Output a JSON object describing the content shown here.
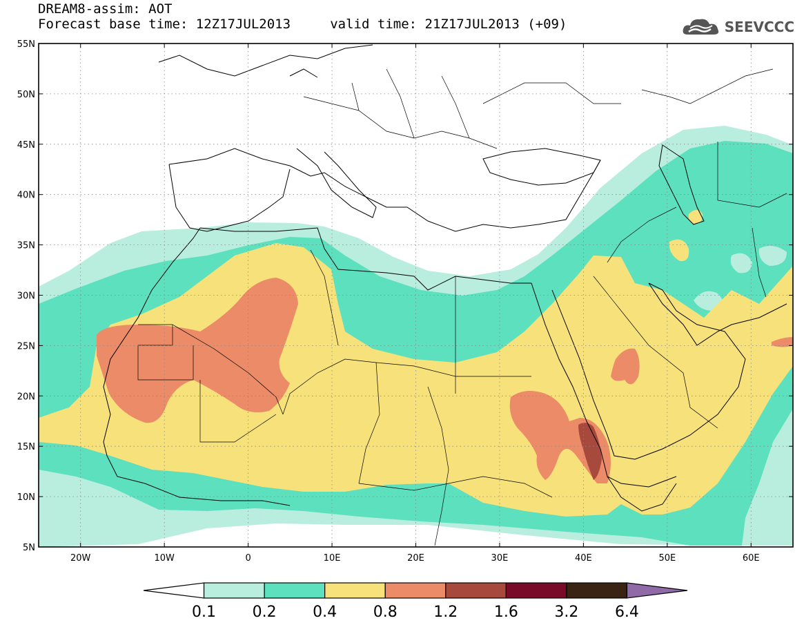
{
  "title": {
    "line1": "DREAM8-assim: AOT",
    "line2": "Forecast base time: 12Z17JUL2013     valid time: 21Z17JUL2013 (+09)"
  },
  "logo": {
    "text": "SEEVCCC",
    "icon": "cloud-logo-icon"
  },
  "map": {
    "lon_range": [
      -25,
      65
    ],
    "lat_range": [
      5,
      55
    ],
    "x_ticks": [
      {
        "value": -20,
        "label": "20W"
      },
      {
        "value": -10,
        "label": "10W"
      },
      {
        "value": 0,
        "label": "0"
      },
      {
        "value": 10,
        "label": "10E"
      },
      {
        "value": 20,
        "label": "20E"
      },
      {
        "value": 30,
        "label": "30E"
      },
      {
        "value": 40,
        "label": "40E"
      },
      {
        "value": 50,
        "label": "50E"
      },
      {
        "value": 60,
        "label": "60E"
      }
    ],
    "y_ticks": [
      {
        "value": 55,
        "label": "55N"
      },
      {
        "value": 50,
        "label": "50N"
      },
      {
        "value": 45,
        "label": "45N"
      },
      {
        "value": 40,
        "label": "40N"
      },
      {
        "value": 35,
        "label": "35N"
      },
      {
        "value": 30,
        "label": "30N"
      },
      {
        "value": 25,
        "label": "25N"
      },
      {
        "value": 20,
        "label": "20N"
      },
      {
        "value": 15,
        "label": "15N"
      },
      {
        "value": 10,
        "label": "10N"
      },
      {
        "value": 5,
        "label": "5N"
      }
    ],
    "grid": "dotted"
  },
  "colorbar": {
    "colors": [
      "#ffffff",
      "#b9eedf",
      "#5ce0be",
      "#f7e17a",
      "#ec8b68",
      "#a8493d",
      "#7a0b28",
      "#3a2313",
      "#8f6aa6"
    ],
    "labels": [
      "0.1",
      "0.2",
      "0.4",
      "0.8",
      "1.2",
      "1.6",
      "3.2",
      "6.4"
    ]
  }
}
